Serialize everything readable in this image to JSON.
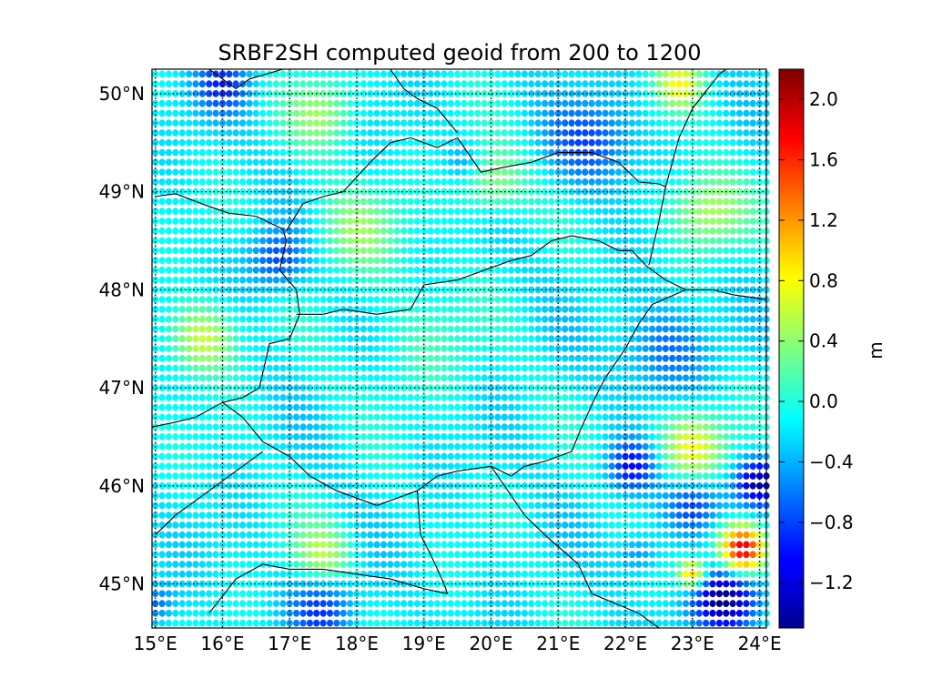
{
  "chart_data": {
    "type": "scatter",
    "title": "SRBF2SH computed geoid from 200 to 1200",
    "xlabel": "",
    "ylabel": "",
    "xlim": [
      14.95,
      24.1
    ],
    "ylim": [
      44.55,
      50.25
    ],
    "x_ticks": [
      15,
      16,
      17,
      18,
      19,
      20,
      21,
      22,
      23,
      24
    ],
    "x_tick_labels": [
      "15°E",
      "16°E",
      "17°E",
      "18°E",
      "19°E",
      "20°E",
      "21°E",
      "22°E",
      "23°E",
      "24°E"
    ],
    "y_ticks": [
      45,
      46,
      47,
      48,
      49,
      50
    ],
    "y_tick_labels": [
      "45°N",
      "46°N",
      "47°N",
      "48°N",
      "49°N",
      "50°N"
    ],
    "grid": true,
    "grid_spacing_deg": 0.1,
    "colorbar": {
      "label": "m",
      "colormap": "jet",
      "range": [
        -1.5,
        2.2
      ],
      "ticks": [
        -1.2,
        -0.8,
        -0.4,
        0.0,
        0.4,
        0.8,
        1.2,
        1.6,
        2.0
      ],
      "tick_labels": [
        "−1.2",
        "−0.8",
        "−0.4",
        "0.0",
        "0.4",
        "0.8",
        "1.2",
        "1.6",
        "2.0"
      ]
    },
    "background_value": -0.15,
    "anomalies": [
      {
        "lon": 23.75,
        "lat": 45.35,
        "value": 2.0,
        "radius_deg": 0.25
      },
      {
        "lon": 23.0,
        "lat": 45.1,
        "value": 1.3,
        "radius_deg": 0.15
      },
      {
        "lon": 23.0,
        "lat": 46.4,
        "value": 0.8,
        "radius_deg": 0.35
      },
      {
        "lon": 23.5,
        "lat": 44.85,
        "value": -1.5,
        "radius_deg": 0.35
      },
      {
        "lon": 24.0,
        "lat": 46.05,
        "value": -1.3,
        "radius_deg": 0.25
      },
      {
        "lon": 22.1,
        "lat": 46.2,
        "value": -1.0,
        "radius_deg": 0.25
      },
      {
        "lon": 23.0,
        "lat": 45.8,
        "value": -0.9,
        "radius_deg": 0.3
      },
      {
        "lon": 15.7,
        "lat": 47.5,
        "value": 0.65,
        "radius_deg": 0.35
      },
      {
        "lon": 17.5,
        "lat": 45.3,
        "value": 0.5,
        "radius_deg": 0.3
      },
      {
        "lon": 23.2,
        "lat": 48.8,
        "value": 0.55,
        "radius_deg": 0.4
      },
      {
        "lon": 22.8,
        "lat": 50.1,
        "value": 0.7,
        "radius_deg": 0.25
      },
      {
        "lon": 20.0,
        "lat": 49.1,
        "value": 0.45,
        "radius_deg": 0.35
      },
      {
        "lon": 18.0,
        "lat": 48.6,
        "value": 0.35,
        "radius_deg": 0.45
      },
      {
        "lon": 17.5,
        "lat": 49.8,
        "value": 0.4,
        "radius_deg": 0.35
      },
      {
        "lon": 16.8,
        "lat": 48.3,
        "value": -0.8,
        "radius_deg": 0.3
      },
      {
        "lon": 16.0,
        "lat": 50.1,
        "value": -0.8,
        "radius_deg": 0.3
      },
      {
        "lon": 21.5,
        "lat": 49.5,
        "value": -0.75,
        "radius_deg": 0.45
      },
      {
        "lon": 22.6,
        "lat": 47.4,
        "value": -0.65,
        "radius_deg": 0.45
      },
      {
        "lon": 17.5,
        "lat": 44.75,
        "value": -0.8,
        "radius_deg": 0.35
      },
      {
        "lon": 15.0,
        "lat": 44.8,
        "value": -0.7,
        "radius_deg": 0.2
      },
      {
        "lon": 19.6,
        "lat": 49.3,
        "value": -0.5,
        "radius_deg": 0.2
      },
      {
        "lon": 22.2,
        "lat": 45.3,
        "value": -0.6,
        "radius_deg": 0.2
      },
      {
        "lon": 19.0,
        "lat": 47.5,
        "value": 0.1,
        "radius_deg": 0.6
      }
    ]
  },
  "borders": [
    [
      [
        15.0,
        48.95
      ],
      [
        15.3,
        48.98
      ],
      [
        15.8,
        48.85
      ],
      [
        16.1,
        48.78
      ],
      [
        16.5,
        48.75
      ],
      [
        16.9,
        48.62
      ],
      [
        16.95,
        48.5
      ],
      [
        16.85,
        48.2
      ],
      [
        17.1,
        48.0
      ],
      [
        17.15,
        47.75
      ],
      [
        17.0,
        47.5
      ],
      [
        16.7,
        47.45
      ],
      [
        16.55,
        47.0
      ],
      [
        16.3,
        46.9
      ],
      [
        16.0,
        46.85
      ]
    ],
    [
      [
        16.95,
        48.6
      ],
      [
        17.2,
        48.88
      ],
      [
        17.5,
        48.95
      ],
      [
        17.8,
        49.0
      ],
      [
        18.2,
        49.3
      ],
      [
        18.5,
        49.5
      ],
      [
        18.8,
        49.55
      ],
      [
        19.2,
        49.45
      ],
      [
        19.5,
        49.55
      ],
      [
        19.85,
        49.2
      ],
      [
        20.2,
        49.25
      ],
      [
        20.6,
        49.3
      ],
      [
        21.0,
        49.4
      ],
      [
        21.5,
        49.4
      ],
      [
        21.9,
        49.3
      ],
      [
        22.2,
        49.1
      ],
      [
        22.5,
        49.08
      ],
      [
        22.6,
        49.05
      ]
    ],
    [
      [
        16.0,
        46.85
      ],
      [
        16.3,
        46.7
      ],
      [
        16.6,
        46.45
      ],
      [
        17.0,
        46.3
      ],
      [
        17.3,
        46.1
      ],
      [
        17.7,
        45.95
      ],
      [
        18.3,
        45.8
      ],
      [
        18.9,
        45.95
      ],
      [
        19.2,
        46.1
      ],
      [
        19.5,
        46.15
      ],
      [
        20.0,
        46.2
      ],
      [
        20.3,
        46.1
      ],
      [
        20.5,
        46.2
      ],
      [
        20.8,
        46.25
      ],
      [
        21.2,
        46.35
      ],
      [
        21.35,
        46.6
      ],
      [
        21.55,
        46.9
      ],
      [
        21.7,
        47.1
      ],
      [
        22.0,
        47.4
      ],
      [
        22.2,
        47.65
      ],
      [
        22.4,
        47.85
      ],
      [
        22.9,
        48.0
      ]
    ],
    [
      [
        17.1,
        47.75
      ],
      [
        17.5,
        47.75
      ],
      [
        17.8,
        47.8
      ],
      [
        18.3,
        47.75
      ],
      [
        18.8,
        47.8
      ],
      [
        19.0,
        48.05
      ],
      [
        19.5,
        48.1
      ],
      [
        19.9,
        48.2
      ],
      [
        20.3,
        48.3
      ],
      [
        20.6,
        48.35
      ],
      [
        20.9,
        48.5
      ],
      [
        21.2,
        48.55
      ],
      [
        21.6,
        48.5
      ],
      [
        21.9,
        48.4
      ],
      [
        22.1,
        48.4
      ],
      [
        22.3,
        48.25
      ],
      [
        22.6,
        48.1
      ],
      [
        22.9,
        48.0
      ]
    ],
    [
      [
        22.6,
        49.05
      ],
      [
        22.5,
        48.7
      ],
      [
        22.4,
        48.4
      ],
      [
        22.35,
        48.25
      ]
    ],
    [
      [
        22.6,
        49.05
      ],
      [
        22.8,
        49.55
      ],
      [
        23.0,
        49.85
      ],
      [
        23.4,
        50.2
      ],
      [
        23.5,
        50.25
      ]
    ],
    [
      [
        22.9,
        48.0
      ],
      [
        23.3,
        48.0
      ],
      [
        23.6,
        47.95
      ],
      [
        24.1,
        47.9
      ]
    ],
    [
      [
        16.0,
        46.85
      ],
      [
        15.6,
        46.7
      ],
      [
        15.3,
        46.65
      ],
      [
        14.95,
        46.6
      ]
    ],
    [
      [
        15.0,
        45.5
      ],
      [
        15.3,
        45.7
      ],
      [
        15.6,
        45.85
      ],
      [
        16.0,
        46.05
      ],
      [
        16.3,
        46.2
      ],
      [
        16.6,
        46.35
      ]
    ],
    [
      [
        18.9,
        45.95
      ],
      [
        18.95,
        45.5
      ],
      [
        19.1,
        45.3
      ],
      [
        19.3,
        45.0
      ],
      [
        19.35,
        44.9
      ]
    ],
    [
      [
        20.0,
        46.2
      ],
      [
        20.3,
        45.9
      ],
      [
        20.5,
        45.7
      ],
      [
        20.8,
        45.5
      ],
      [
        21.3,
        45.2
      ],
      [
        21.5,
        44.9
      ],
      [
        22.2,
        44.7
      ],
      [
        22.5,
        44.55
      ]
    ],
    [
      [
        15.8,
        44.7
      ],
      [
        16.2,
        45.05
      ],
      [
        16.6,
        45.2
      ],
      [
        17.0,
        45.15
      ],
      [
        17.5,
        45.15
      ],
      [
        18.0,
        45.1
      ],
      [
        18.5,
        45.05
      ],
      [
        19.0,
        44.95
      ],
      [
        19.35,
        44.9
      ]
    ],
    [
      [
        18.5,
        50.25
      ],
      [
        18.7,
        50.05
      ],
      [
        18.9,
        49.95
      ],
      [
        19.2,
        49.85
      ],
      [
        19.5,
        49.6
      ]
    ],
    [
      [
        15.8,
        50.25
      ],
      [
        16.2,
        50.05
      ],
      [
        16.4,
        50.15
      ],
      [
        16.9,
        50.25
      ]
    ]
  ]
}
